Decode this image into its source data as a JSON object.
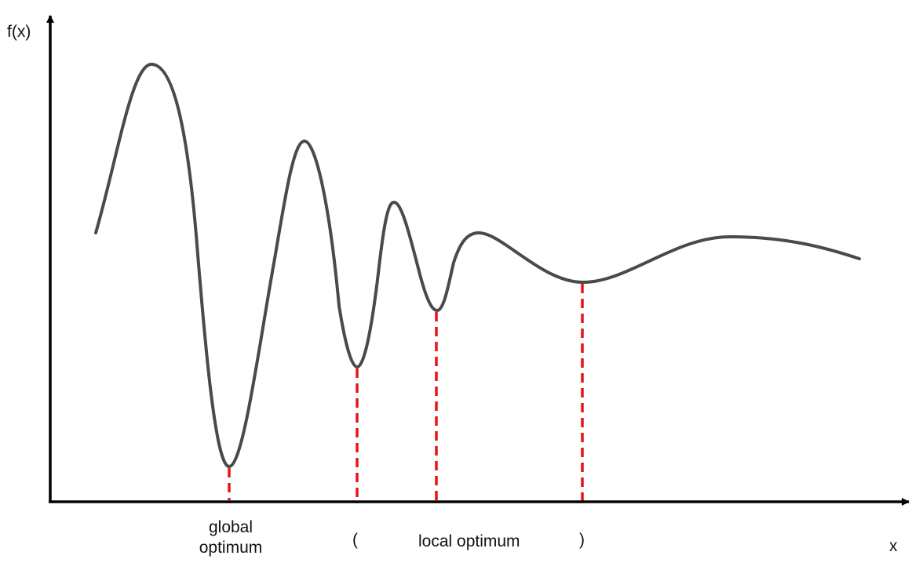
{
  "colors": {
    "curve": "#4a4a4a",
    "axis": "#000000",
    "marker": "#e8141b",
    "text": "#111111"
  },
  "labels": {
    "y_axis": "f(x)",
    "x_axis": "x",
    "global_optimum": "global optimum",
    "range_open": "(",
    "local_optimum": "local optimum",
    "range_close": ")"
  },
  "chart_data": {
    "type": "line",
    "xlabel": "x",
    "ylabel": "f(x)",
    "series": [
      {
        "role": "objective function curve",
        "shape": "damped oscillation with decreasing amplitude",
        "extrema": [
          {
            "kind": "start"
          },
          {
            "kind": "maximum"
          },
          {
            "kind": "minimum",
            "is_global_optimum": true
          },
          {
            "kind": "maximum"
          },
          {
            "kind": "minimum"
          },
          {
            "kind": "maximum"
          },
          {
            "kind": "minimum"
          },
          {
            "kind": "maximum"
          },
          {
            "kind": "minimum"
          },
          {
            "kind": "maximum"
          },
          {
            "kind": "end"
          }
        ]
      }
    ],
    "marked_minima_count": 4,
    "marker_style": "red dashed vertical line"
  }
}
